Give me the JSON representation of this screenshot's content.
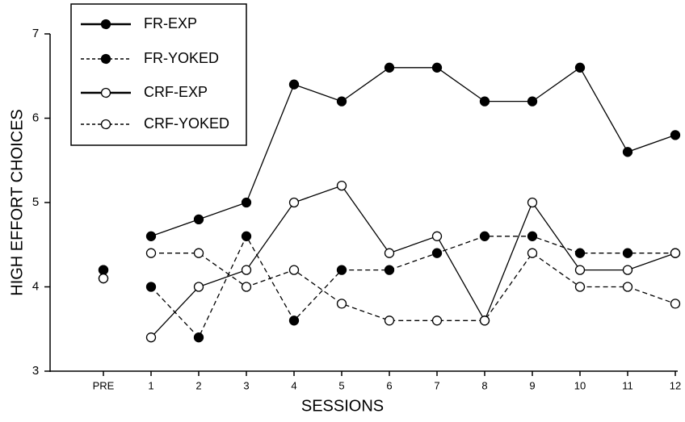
{
  "chart_data": {
    "type": "line",
    "x_label": "SESSIONS",
    "y_label": "HIGH EFFORT CHOICES",
    "categories": [
      "PRE",
      "1",
      "2",
      "3",
      "4",
      "5",
      "6",
      "7",
      "8",
      "9",
      "10",
      "11",
      "12"
    ],
    "ylim": [
      3,
      7
    ],
    "yticks": [
      3,
      4,
      5,
      6,
      7
    ],
    "series": [
      {
        "name": "FR-EXP",
        "color": "#000000",
        "line_style": "solid",
        "marker": "filled",
        "values": [
          4.2,
          4.6,
          4.8,
          5.0,
          6.4,
          6.2,
          6.6,
          6.6,
          6.2,
          6.2,
          6.6,
          5.6,
          5.8
        ]
      },
      {
        "name": "FR-YOKED",
        "color": "#000000",
        "line_style": "dashed",
        "marker": "filled",
        "values": [
          4.2,
          4.0,
          3.4,
          4.6,
          3.6,
          4.2,
          4.2,
          4.4,
          4.6,
          4.6,
          4.4,
          4.4,
          4.4
        ]
      },
      {
        "name": "CRF-EXP",
        "color": "#000000",
        "line_style": "solid",
        "marker": "open",
        "values": [
          4.1,
          3.4,
          4.0,
          4.2,
          5.0,
          5.2,
          4.4,
          4.6,
          3.6,
          5.0,
          4.2,
          4.2,
          4.4
        ]
      },
      {
        "name": "CRF-YOKED",
        "color": "#000000",
        "line_style": "dashed",
        "marker": "open",
        "values": [
          4.1,
          4.4,
          4.4,
          4.0,
          4.2,
          3.8,
          3.6,
          3.6,
          3.6,
          4.4,
          4.0,
          4.0,
          3.8
        ]
      }
    ]
  }
}
